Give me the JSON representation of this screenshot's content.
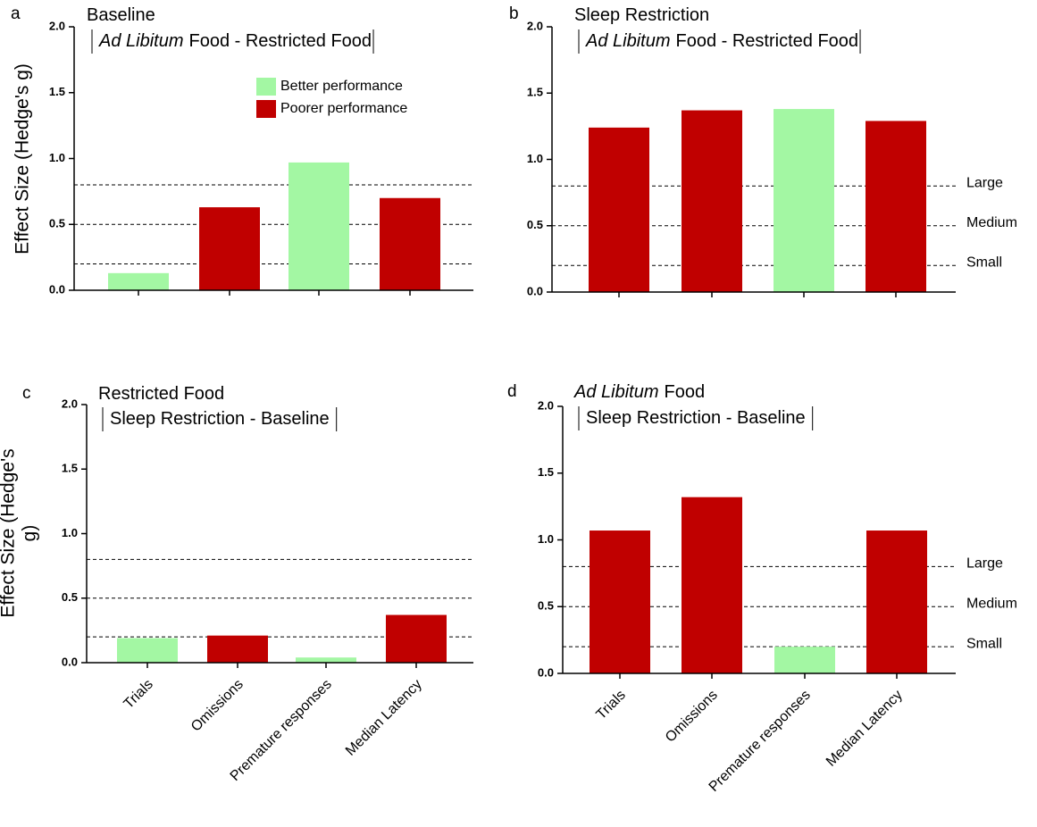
{
  "chart_data": [
    {
      "type": "bar",
      "panel": "a",
      "title": "Baseline",
      "subtitle_italic": "Ad Libitum",
      "subtitle": "Food - Restricted Food",
      "ylabel": [
        "Effect Size (Hedge's g)"
      ],
      "categories": [
        null,
        null,
        null,
        null
      ],
      "values": [
        0.13,
        0.63,
        0.97,
        0.7
      ],
      "colors": [
        "#a3f7a3",
        "#c00000",
        "#a3f7a3",
        "#c00000"
      ],
      "legend": [
        {
          "name": "Better performance",
          "color": "#a3f7a3"
        },
        {
          "name": "Poorer performance",
          "color": "#c00000"
        }
      ],
      "reference_lines": [
        {
          "value": 0.2
        },
        {
          "value": 0.5
        },
        {
          "value": 0.8
        }
      ],
      "ylim": [
        0,
        2
      ],
      "yticks": [
        {
          "value": 0,
          "label": "0.0"
        },
        0.5,
        {
          "value": 1,
          "label": "1.0"
        },
        1.5,
        {
          "value": 2,
          "label": "2.0"
        }
      ]
    },
    {
      "type": "bar",
      "panel": "b",
      "title": "Sleep Restriction",
      "subtitle_italic": "Ad Libitum",
      "subtitle": "Food - Restricted Food",
      "categories": [
        null,
        null,
        null,
        null
      ],
      "values": [
        1.24,
        1.37,
        1.38,
        1.29
      ],
      "colors": [
        "#c00000",
        "#c00000",
        "#a3f7a3",
        "#c00000"
      ],
      "reference_lines": [
        {
          "value": 0.2,
          "label": "Small"
        },
        {
          "value": 0.5,
          "label": "Medium"
        },
        {
          "value": 0.8,
          "label": "Large"
        }
      ],
      "ylim": [
        0,
        2
      ],
      "yticks": [
        {
          "value": 0,
          "label": "0.0"
        },
        0.5,
        {
          "value": 1,
          "label": "1.0"
        },
        1.5,
        {
          "value": 2,
          "label": "2.0"
        }
      ]
    },
    {
      "type": "bar",
      "panel": "c",
      "title": "Restricted Food",
      "subtitle": "Sleep Restriction - Baseline",
      "ylabel": [
        "Effect Size (Hedge's",
        "g)"
      ],
      "categories": [
        "Trials",
        "Omissions",
        "Premature responses",
        "Median Latency"
      ],
      "values": [
        0.19,
        0.21,
        0.04,
        0.37
      ],
      "colors": [
        "#a3f7a3",
        "#c00000",
        "#a3f7a3",
        "#c00000"
      ],
      "reference_lines": [
        {
          "value": 0.2
        },
        {
          "value": 0.5
        },
        {
          "value": 0.8
        }
      ],
      "ylim": [
        0,
        2
      ],
      "yticks": [
        {
          "value": 0,
          "label": "0.0"
        },
        0.5,
        {
          "value": 1,
          "label": "1.0"
        },
        1.5,
        {
          "value": 2,
          "label": "2.0"
        }
      ]
    },
    {
      "type": "bar",
      "panel": "d",
      "title_italic": "Ad Libitum",
      "title": "Food",
      "subtitle": "Sleep Restriction - Baseline",
      "categories": [
        "Trials",
        "Omissions",
        "Premature responses",
        "Median Latency"
      ],
      "values": [
        1.07,
        1.32,
        0.2,
        1.07
      ],
      "colors": [
        "#c00000",
        "#c00000",
        "#a3f7a3",
        "#c00000"
      ],
      "reference_lines": [
        {
          "value": 0.2,
          "label": "Small"
        },
        {
          "value": 0.5,
          "label": "Medium"
        },
        {
          "value": 0.8,
          "label": "Large"
        }
      ],
      "ylim": [
        0,
        2
      ],
      "yticks": [
        {
          "value": 0,
          "label": "0.0"
        },
        0.5,
        {
          "value": 1,
          "label": "1.0"
        },
        1.5,
        {
          "value": 2,
          "label": "2.0"
        }
      ]
    }
  ]
}
